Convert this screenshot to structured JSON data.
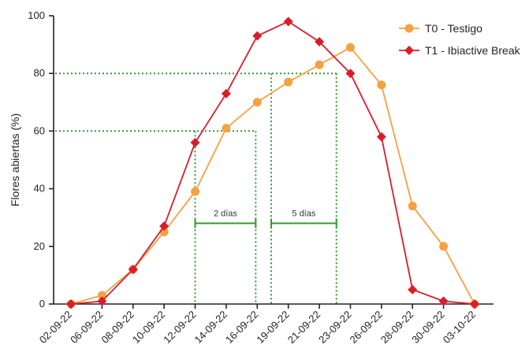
{
  "chart_data": {
    "type": "line",
    "title": "",
    "xlabel": "",
    "ylabel": "Flores abiertas (%)",
    "ylim": [
      0,
      100
    ],
    "yticks": [
      0,
      20,
      40,
      60,
      80,
      100
    ],
    "categories": [
      "02-09-22",
      "06-09-22",
      "08-09-22",
      "10-09-22",
      "12-09-22",
      "14-09-22",
      "16-09-22",
      "19-09-22",
      "21-09-22",
      "23-09-22",
      "26-09-22",
      "28-09-22",
      "30-09-22",
      "03-10-22"
    ],
    "series": [
      {
        "name": "T0 - Testigo",
        "color": "#F5A142",
        "marker": "circle",
        "values": [
          0,
          3,
          12,
          25,
          39,
          61,
          70,
          77,
          83,
          89,
          76,
          34,
          20,
          0
        ]
      },
      {
        "name": "T1 - Ibiactive Break",
        "color": "#D81E2A",
        "marker": "diamond",
        "values": [
          0,
          1,
          12,
          27,
          56,
          73,
          93,
          98,
          91,
          80,
          58,
          5,
          1,
          0
        ]
      }
    ],
    "reference_lines": {
      "color": "#2E9B2E",
      "horizontal": [
        60,
        80
      ],
      "vertical": [
        4,
        5.95,
        6.45,
        8.55
      ]
    },
    "annotations": [
      {
        "text": "2 días",
        "from": 4,
        "to": 5.95,
        "y": 28
      },
      {
        "text": "5 días",
        "from": 6.45,
        "to": 8.55,
        "y": 28
      }
    ],
    "legend": "top-right",
    "grid": false
  }
}
